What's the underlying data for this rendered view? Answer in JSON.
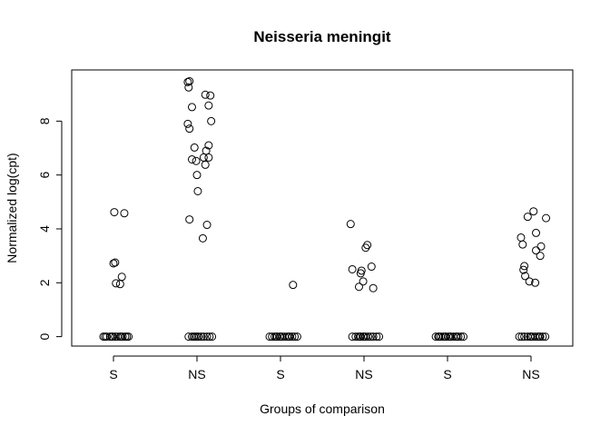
{
  "chart_data": {
    "type": "scatter",
    "title": "Neisseria meningit",
    "xlabel": "Groups of comparison",
    "ylabel": "Normalized log(cpt)",
    "categories": [
      "S",
      "NS",
      "S",
      "NS",
      "S",
      "NS"
    ],
    "xlim": [
      0.5,
      6.5
    ],
    "ylim": [
      -0.35,
      9.9
    ],
    "yticks": [
      0,
      2,
      4,
      6,
      8
    ],
    "grid": false,
    "legend": "none",
    "series": [
      {
        "points": [
          [
            0.88,
            0
          ],
          [
            0.92,
            0
          ],
          [
            0.96,
            0
          ],
          [
            0.99,
            0
          ],
          [
            1.02,
            0
          ],
          [
            1.05,
            0
          ],
          [
            1.08,
            0
          ],
          [
            1.11,
            0
          ],
          [
            1.14,
            0
          ],
          [
            1.18,
            0
          ],
          [
            0.9,
            0
          ],
          [
            1.16,
            0
          ],
          [
            1.09,
            0
          ],
          [
            0.98,
            0
          ],
          [
            1.01,
            4.62
          ],
          [
            1.13,
            4.58
          ],
          [
            1.0,
            2.72
          ],
          [
            1.02,
            2.75
          ],
          [
            1.1,
            2.22
          ],
          [
            1.03,
            1.98
          ],
          [
            1.08,
            1.95
          ]
        ]
      },
      {
        "points": [
          [
            1.89,
            9.45
          ],
          [
            1.91,
            9.48
          ],
          [
            1.9,
            9.25
          ],
          [
            2.1,
            8.98
          ],
          [
            2.16,
            8.95
          ],
          [
            1.94,
            8.52
          ],
          [
            2.14,
            8.58
          ],
          [
            1.89,
            7.9
          ],
          [
            2.17,
            8.0
          ],
          [
            1.91,
            7.72
          ],
          [
            1.97,
            7.02
          ],
          [
            2.14,
            7.1
          ],
          [
            2.11,
            6.9
          ],
          [
            1.94,
            6.58
          ],
          [
            1.99,
            6.52
          ],
          [
            2.08,
            6.65
          ],
          [
            2.14,
            6.65
          ],
          [
            2.1,
            6.38
          ],
          [
            2.0,
            6.0
          ],
          [
            2.01,
            5.4
          ],
          [
            1.91,
            4.35
          ],
          [
            2.12,
            4.15
          ],
          [
            2.07,
            3.65
          ],
          [
            1.9,
            0
          ],
          [
            1.94,
            0
          ],
          [
            1.98,
            0
          ],
          [
            2.0,
            0
          ],
          [
            2.05,
            0
          ],
          [
            2.08,
            0
          ],
          [
            2.12,
            0
          ],
          [
            2.15,
            0
          ],
          [
            2.18,
            0
          ],
          [
            1.96,
            0
          ],
          [
            2.02,
            0
          ]
        ]
      },
      {
        "points": [
          [
            2.87,
            0
          ],
          [
            2.9,
            0
          ],
          [
            2.93,
            0
          ],
          [
            2.96,
            0
          ],
          [
            2.99,
            0
          ],
          [
            3.02,
            0
          ],
          [
            3.05,
            0
          ],
          [
            3.08,
            0
          ],
          [
            3.11,
            0
          ],
          [
            3.14,
            0
          ],
          [
            3.17,
            0
          ],
          [
            3.2,
            0
          ],
          [
            2.95,
            0
          ],
          [
            3.0,
            0
          ],
          [
            3.1,
            0
          ],
          [
            3.15,
            1.92
          ]
        ]
      },
      {
        "points": [
          [
            3.84,
            4.18
          ],
          [
            4.04,
            3.4
          ],
          [
            4.02,
            3.3
          ],
          [
            4.09,
            2.6
          ],
          [
            3.86,
            2.5
          ],
          [
            3.97,
            2.45
          ],
          [
            3.96,
            2.35
          ],
          [
            3.99,
            2.05
          ],
          [
            3.94,
            1.85
          ],
          [
            4.11,
            1.8
          ],
          [
            3.86,
            0
          ],
          [
            3.9,
            0
          ],
          [
            3.93,
            0
          ],
          [
            3.96,
            0
          ],
          [
            3.99,
            0
          ],
          [
            4.02,
            0
          ],
          [
            4.05,
            0
          ],
          [
            4.08,
            0
          ],
          [
            4.11,
            0
          ],
          [
            4.15,
            0
          ],
          [
            4.18,
            0
          ],
          [
            3.95,
            0
          ],
          [
            4.0,
            0
          ]
        ]
      },
      {
        "points": [
          [
            4.86,
            0
          ],
          [
            4.89,
            0
          ],
          [
            4.92,
            0
          ],
          [
            4.95,
            0
          ],
          [
            4.98,
            0
          ],
          [
            5.01,
            0
          ],
          [
            5.04,
            0
          ],
          [
            5.07,
            0
          ],
          [
            5.1,
            0
          ],
          [
            5.13,
            0
          ],
          [
            5.16,
            0
          ],
          [
            5.19,
            0
          ],
          [
            4.9,
            0
          ],
          [
            4.97,
            0
          ],
          [
            5.03,
            0
          ],
          [
            5.11,
            0
          ]
        ]
      },
      {
        "points": [
          [
            5.88,
            3.68
          ],
          [
            5.96,
            4.45
          ],
          [
            6.03,
            4.65
          ],
          [
            6.18,
            4.4
          ],
          [
            6.06,
            3.85
          ],
          [
            5.9,
            3.42
          ],
          [
            6.12,
            3.35
          ],
          [
            6.06,
            3.2
          ],
          [
            6.11,
            3.0
          ],
          [
            5.92,
            2.62
          ],
          [
            5.91,
            2.48
          ],
          [
            5.93,
            2.25
          ],
          [
            5.98,
            2.05
          ],
          [
            6.05,
            2.0
          ],
          [
            5.86,
            0
          ],
          [
            5.89,
            0
          ],
          [
            5.92,
            0
          ],
          [
            5.96,
            0
          ],
          [
            5.99,
            0
          ],
          [
            6.02,
            0
          ],
          [
            6.05,
            0
          ],
          [
            6.08,
            0
          ],
          [
            6.11,
            0
          ],
          [
            6.14,
            0
          ],
          [
            6.17,
            0
          ],
          [
            6.0,
            0
          ],
          [
            6.1,
            0
          ]
        ]
      }
    ]
  }
}
